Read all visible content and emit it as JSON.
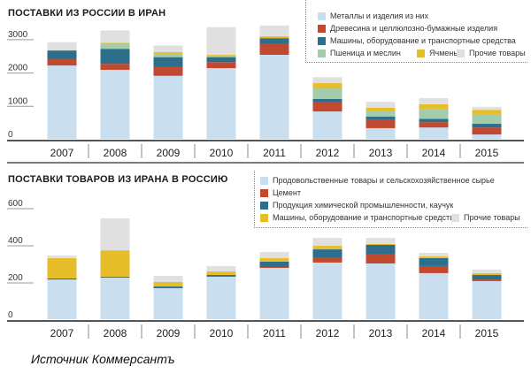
{
  "colors": {
    "metals": "#c9dff0",
    "wood": "#c0492f",
    "machines": "#2c6e8c",
    "wheat": "#a3ccaa",
    "barley": "#e6be2a",
    "other": "#e0e0e0",
    "food": "#c9dff0",
    "cement": "#c0492f",
    "chem": "#2c6e8c",
    "mach": "#e6be2a"
  },
  "source": "Источник  Коммерсантъ",
  "chart_data": [
    {
      "type": "bar",
      "stacked": true,
      "title": "ПОСТАВКИ  ИЗ РОССИИ В ИРАН",
      "categories": [
        "2007",
        "2008",
        "2009",
        "2010",
        "2011",
        "2012",
        "2013",
        "2014",
        "2015"
      ],
      "ylim": [
        0,
        3500
      ],
      "yticks": [
        "0",
        "1000",
        "2000",
        "3000"
      ],
      "ytick_values": [
        0,
        1000,
        2000,
        3000
      ],
      "legend_position": "top-right",
      "series": [
        {
          "key": "metals",
          "name": "Металлы и изделия из них",
          "values": [
            2200,
            2070,
            1890,
            2120,
            2520,
            820,
            320,
            340,
            130
          ]
        },
        {
          "key": "wood",
          "name": "Древесина и целлюлозно-бумажные изделия",
          "values": [
            200,
            180,
            260,
            180,
            320,
            270,
            240,
            160,
            210
          ]
        },
        {
          "key": "machines",
          "name": "Машины, оборудование и транспортные средства",
          "values": [
            250,
            450,
            300,
            150,
            180,
            110,
            110,
            100,
            110
          ]
        },
        {
          "key": "wheat",
          "name": "Пшеница и меслин",
          "values": [
            0,
            150,
            100,
            50,
            0,
            310,
            150,
            300,
            270
          ]
        },
        {
          "key": "barley",
          "name": "Ячмень",
          "values": [
            0,
            30,
            50,
            20,
            60,
            160,
            110,
            140,
            150
          ]
        },
        {
          "key": "other",
          "name": "Прочие товары",
          "values": [
            250,
            370,
            200,
            830,
            320,
            180,
            180,
            180,
            90
          ]
        }
      ]
    },
    {
      "type": "bar",
      "stacked": true,
      "title": "ПОСТАВКИ ТОВАРОВ ИЗ ИРАНА В РОССИЮ",
      "categories": [
        "2007",
        "2008",
        "2009",
        "2010",
        "2011",
        "2012",
        "2013",
        "2014",
        "2015"
      ],
      "ylim": [
        0,
        640
      ],
      "yticks": [
        "0",
        "200",
        "400",
        "600"
      ],
      "ytick_values": [
        0,
        200,
        400,
        600
      ],
      "legend_position": "top-right",
      "series": [
        {
          "key": "food",
          "name": "Продовольственные товары и сельскохозяйственное сырье",
          "values": [
            214,
            224,
            167,
            229,
            276,
            305,
            300,
            248,
            205
          ]
        },
        {
          "key": "cement",
          "name": "Цемент",
          "values": [
            0,
            0,
            0,
            0,
            5,
            24,
            48,
            38,
            9
          ]
        },
        {
          "key": "chem",
          "name": "Продукция химической промышленности, каучук",
          "values": [
            5,
            5,
            9,
            9,
            29,
            47,
            52,
            43,
            24
          ]
        },
        {
          "key": "mach",
          "name": "Машины, оборудование и транспортные средства",
          "values": [
            110,
            142,
            24,
            19,
            19,
            19,
            5,
            9,
            10
          ]
        },
        {
          "key": "other",
          "name": "Прочие товары",
          "values": [
            14,
            172,
            33,
            29,
            33,
            43,
            33,
            19,
            19
          ]
        }
      ]
    }
  ]
}
